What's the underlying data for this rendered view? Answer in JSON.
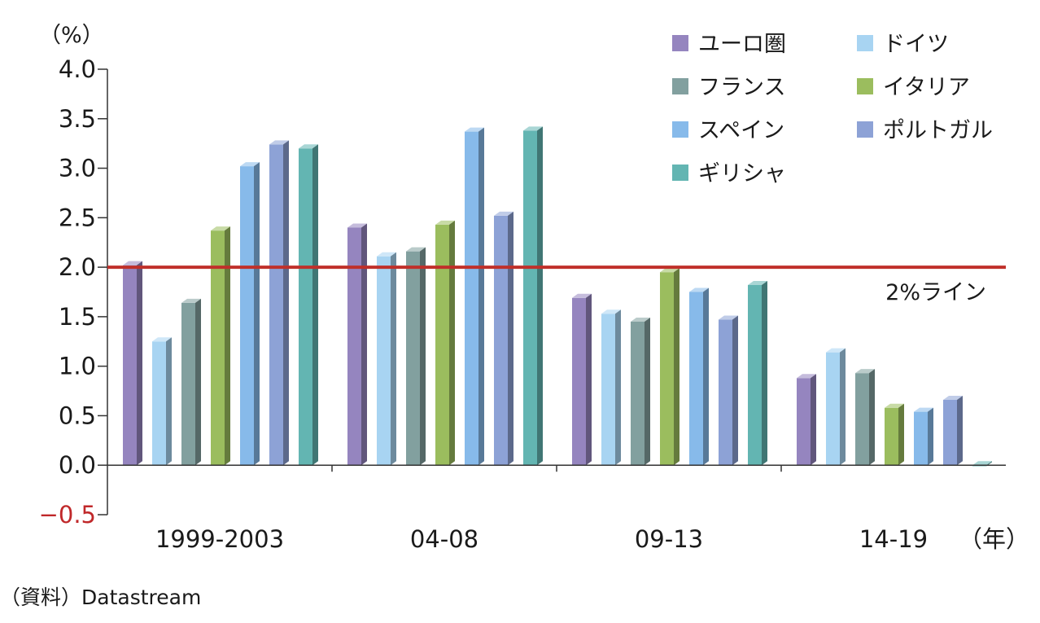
{
  "chart_data": {
    "type": "bar",
    "ylabel": "（%）",
    "xlabel": "（年）",
    "categories": [
      "1999-2003",
      "04-08",
      "09-13",
      "14-19"
    ],
    "ylim": [
      -0.5,
      4.0
    ],
    "yticks": [
      4.0,
      3.5,
      3.0,
      2.5,
      2.0,
      1.5,
      1.0,
      0.5,
      0.0,
      -0.5
    ],
    "ytick_labels": [
      "4.0",
      "3.5",
      "3.0",
      "2.5",
      "2.0",
      "1.5",
      "1.0",
      "0.5",
      "0.0",
      "−0.5"
    ],
    "series": [
      {
        "name": "ユーロ圏",
        "values": [
          2.02,
          2.4,
          1.69,
          0.88
        ],
        "color": "#9585bf"
      },
      {
        "name": "ドイツ",
        "values": [
          1.25,
          2.11,
          1.53,
          1.14
        ],
        "color": "#a8d4f2"
      },
      {
        "name": "フランス",
        "values": [
          1.64,
          2.16,
          1.45,
          0.93
        ],
        "color": "#82a09f"
      },
      {
        "name": "イタリア",
        "values": [
          2.37,
          2.43,
          1.95,
          0.58
        ],
        "color": "#9bbd5e"
      },
      {
        "name": "スペイン",
        "values": [
          3.02,
          3.37,
          1.75,
          0.54
        ],
        "color": "#87baea"
      },
      {
        "name": "ポルトガル",
        "values": [
          3.24,
          2.52,
          1.47,
          0.66
        ],
        "color": "#8da2d6"
      },
      {
        "name": "ギリシャ",
        "values": [
          3.2,
          3.38,
          1.82,
          -0.01
        ],
        "color": "#63b5b2"
      }
    ],
    "reference_line": {
      "value": 2.0,
      "label": "2%ライン",
      "color": "#c0302a"
    },
    "legend_position": "top-right",
    "grid": false,
    "source": "（資料）Datastream"
  }
}
